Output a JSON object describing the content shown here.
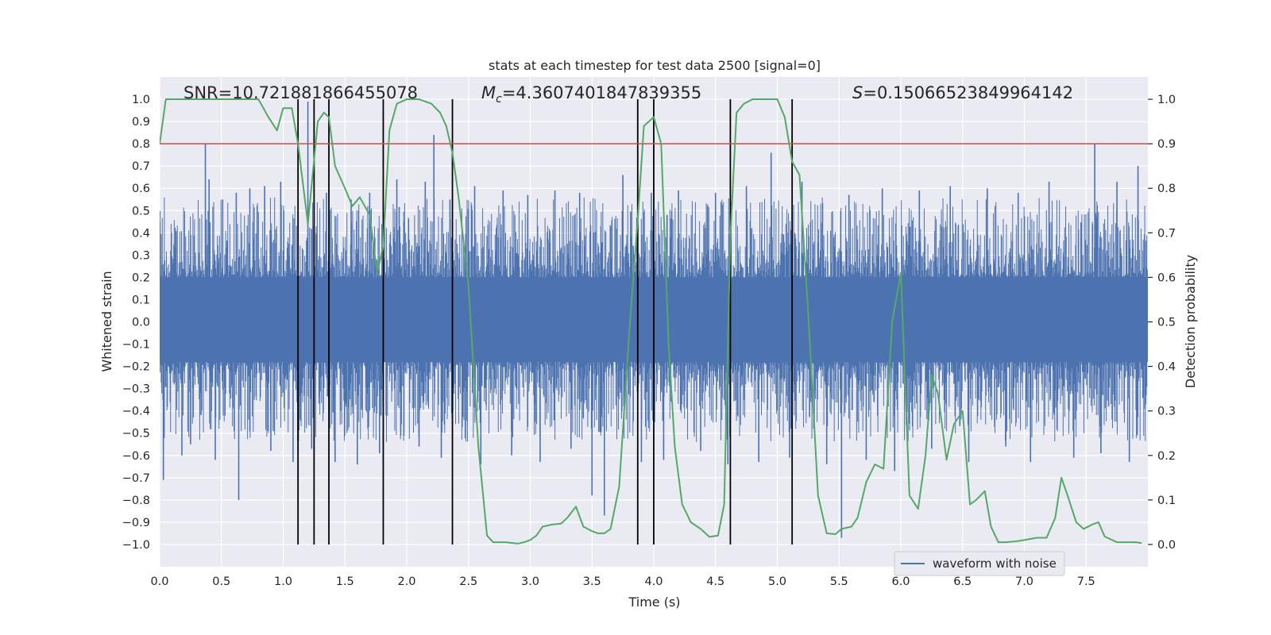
{
  "chart_data": {
    "type": "line",
    "title": "stats at each timestep for test data 2500 [signal=0]",
    "xlabel": "Time (s)",
    "ylabel_left": "Whitened strain",
    "ylabel_right": "Detection probability",
    "xlim": [
      0.0,
      8.0
    ],
    "ylim_left": [
      -1.1,
      1.1
    ],
    "ylim_right": [
      -0.05,
      1.05
    ],
    "x_ticks": [
      0.0,
      0.5,
      1.0,
      1.5,
      2.0,
      2.5,
      3.0,
      3.5,
      4.0,
      4.5,
      5.0,
      5.5,
      6.0,
      6.5,
      7.0,
      7.5
    ],
    "x_tick_labels": [
      "0.0",
      "0.5",
      "1.0",
      "1.5",
      "2.0",
      "2.5",
      "3.0",
      "3.5",
      "4.0",
      "4.5",
      "5.0",
      "5.5",
      "6.0",
      "6.5",
      "7.0",
      "7.5"
    ],
    "y_left_ticks": [
      1.0,
      0.9,
      0.8,
      0.7,
      0.6,
      0.5,
      0.4,
      0.3,
      0.2,
      0.1,
      0.0,
      -0.1,
      -0.2,
      -0.3,
      -0.4,
      -0.5,
      -0.6,
      -0.7,
      -0.8,
      -0.9,
      -1.0
    ],
    "y_left_tick_labels": [
      "1.0",
      "0.9",
      "0.8",
      "0.7",
      "0.6",
      "0.5",
      "0.4",
      "0.3",
      "0.2",
      "0.1",
      "0.0",
      "−0.1",
      "−0.2",
      "−0.3",
      "−0.4",
      "−0.5",
      "−0.6",
      "−0.7",
      "−0.8",
      "−0.9",
      "−1.0"
    ],
    "y_right_ticks": [
      1.0,
      0.9,
      0.8,
      0.7,
      0.6,
      0.5,
      0.4,
      0.3,
      0.2,
      0.1,
      0.0
    ],
    "y_right_tick_labels": [
      "1.0",
      "0.9",
      "0.8",
      "0.7",
      "0.6",
      "0.5",
      "0.4",
      "0.3",
      "0.2",
      "0.1",
      "0.0"
    ],
    "threshold": {
      "axis": "left",
      "value": 0.8,
      "color": "#c44e52"
    },
    "annotations": {
      "snr": "SNR=10.721881866455078",
      "mc_symbol": "M",
      "mc_subscript": "c",
      "mc_value": "=4.3607401847839355",
      "s_symbol": "S",
      "s_value": "=0.15066523849964142"
    },
    "event_lines": [
      1.12,
      1.25,
      1.37,
      1.81,
      2.37,
      3.87,
      4.0,
      4.62,
      5.12
    ],
    "event_line_color": "#000000",
    "waveform": {
      "name": "waveform with noise",
      "color": "#4c72b0",
      "band_low": -0.18,
      "band_high": 0.2,
      "spikes": [
        [
          0.03,
          -0.71
        ],
        [
          0.18,
          -0.6
        ],
        [
          0.25,
          -0.55
        ],
        [
          0.37,
          0.8
        ],
        [
          0.4,
          0.64
        ],
        [
          0.45,
          -0.62
        ],
        [
          0.51,
          0.55
        ],
        [
          0.62,
          0.58
        ],
        [
          0.64,
          -0.8
        ],
        [
          0.73,
          0.6
        ],
        [
          0.85,
          0.61
        ],
        [
          0.9,
          -0.58
        ],
        [
          0.98,
          0.63
        ],
        [
          1.08,
          -0.63
        ],
        [
          1.2,
          0.99
        ],
        [
          1.23,
          -0.57
        ],
        [
          1.35,
          0.58
        ],
        [
          1.42,
          -0.63
        ],
        [
          1.55,
          0.55
        ],
        [
          1.6,
          -0.64
        ],
        [
          1.7,
          0.58
        ],
        [
          1.78,
          -0.59
        ],
        [
          1.92,
          0.64
        ],
        [
          2.1,
          -0.56
        ],
        [
          2.15,
          0.63
        ],
        [
          2.22,
          0.84
        ],
        [
          2.28,
          -0.61
        ],
        [
          2.35,
          0.55
        ],
        [
          2.55,
          0.61
        ],
        [
          2.6,
          -0.64
        ],
        [
          2.78,
          0.59
        ],
        [
          2.85,
          -0.6
        ],
        [
          2.98,
          0.57
        ],
        [
          3.08,
          -0.63
        ],
        [
          3.2,
          0.59
        ],
        [
          3.33,
          -0.57
        ],
        [
          3.4,
          0.58
        ],
        [
          3.5,
          -0.78
        ],
        [
          3.6,
          -0.87
        ],
        [
          3.75,
          0.66
        ],
        [
          3.9,
          -0.63
        ],
        [
          3.98,
          0.58
        ],
        [
          4.08,
          -0.62
        ],
        [
          4.2,
          0.59
        ],
        [
          4.38,
          -0.58
        ],
        [
          4.5,
          0.58
        ],
        [
          4.6,
          -0.64
        ],
        [
          4.75,
          0.61
        ],
        [
          4.85,
          -0.63
        ],
        [
          4.95,
          0.76
        ],
        [
          5.1,
          -0.61
        ],
        [
          5.2,
          0.63
        ],
        [
          5.4,
          -0.64
        ],
        [
          5.52,
          -0.97
        ],
        [
          5.58,
          0.57
        ],
        [
          5.72,
          -0.62
        ],
        [
          5.85,
          0.6
        ],
        [
          5.95,
          -0.67
        ],
        [
          6.15,
          0.59
        ],
        [
          6.25,
          -0.57
        ],
        [
          6.4,
          0.61
        ],
        [
          6.55,
          -0.63
        ],
        [
          6.7,
          0.6
        ],
        [
          6.85,
          -0.56
        ],
        [
          6.95,
          0.58
        ],
        [
          7.05,
          -0.63
        ],
        [
          7.2,
          0.63
        ],
        [
          7.4,
          -0.61
        ],
        [
          7.57,
          0.8
        ],
        [
          7.62,
          -0.59
        ],
        [
          7.75,
          0.63
        ],
        [
          7.85,
          -0.63
        ],
        [
          7.92,
          0.7
        ]
      ]
    },
    "detection": {
      "name": "detection probability",
      "color": "#55a868",
      "x": [
        0.0,
        0.05,
        0.1,
        0.2,
        0.4,
        0.6,
        0.8,
        0.88,
        0.95,
        1.0,
        1.07,
        1.12,
        1.2,
        1.28,
        1.33,
        1.37,
        1.42,
        1.5,
        1.56,
        1.62,
        1.7,
        1.76,
        1.81,
        1.86,
        1.92,
        2.0,
        2.1,
        2.2,
        2.27,
        2.32,
        2.37,
        2.42,
        2.5,
        2.58,
        2.65,
        2.7,
        2.8,
        2.9,
        2.95,
        3.0,
        3.05,
        3.1,
        3.18,
        3.25,
        3.3,
        3.37,
        3.43,
        3.5,
        3.55,
        3.6,
        3.65,
        3.72,
        3.8,
        3.87,
        3.92,
        4.0,
        4.06,
        4.12,
        4.17,
        4.23,
        4.3,
        4.38,
        4.45,
        4.52,
        4.57,
        4.62,
        4.67,
        4.73,
        4.8,
        4.9,
        5.0,
        5.06,
        5.12,
        5.18,
        5.25,
        5.33,
        5.4,
        5.47,
        5.52,
        5.6,
        5.65,
        5.72,
        5.79,
        5.86,
        5.93,
        6.0,
        6.07,
        6.14,
        6.2,
        6.25,
        6.3,
        6.37,
        6.43,
        6.5,
        6.56,
        6.61,
        6.68,
        6.73,
        6.79,
        6.85,
        6.93,
        7.0,
        7.1,
        7.18,
        7.25,
        7.3,
        7.35,
        7.42,
        7.48,
        7.55,
        7.6,
        7.65,
        7.75,
        7.9,
        7.95
      ],
      "y": [
        0.9,
        1.0,
        1.0,
        1.0,
        1.0,
        1.0,
        1.0,
        0.96,
        0.93,
        0.98,
        0.98,
        0.9,
        0.72,
        0.95,
        0.97,
        0.96,
        0.85,
        0.8,
        0.76,
        0.78,
        0.74,
        0.61,
        0.67,
        0.93,
        0.99,
        1.0,
        1.0,
        0.99,
        0.97,
        0.94,
        0.88,
        0.78,
        0.58,
        0.22,
        0.02,
        0.005,
        0.005,
        0.002,
        0.005,
        0.01,
        0.02,
        0.04,
        0.045,
        0.047,
        0.06,
        0.085,
        0.04,
        0.03,
        0.025,
        0.025,
        0.035,
        0.13,
        0.47,
        0.73,
        0.94,
        0.96,
        0.9,
        0.45,
        0.22,
        0.09,
        0.05,
        0.035,
        0.017,
        0.02,
        0.09,
        0.69,
        0.97,
        0.99,
        1.0,
        1.0,
        1.0,
        0.96,
        0.86,
        0.83,
        0.52,
        0.11,
        0.025,
        0.023,
        0.035,
        0.04,
        0.06,
        0.14,
        0.18,
        0.17,
        0.5,
        0.61,
        0.11,
        0.08,
        0.2,
        0.38,
        0.34,
        0.19,
        0.27,
        0.3,
        0.09,
        0.1,
        0.12,
        0.04,
        0.005,
        0.005,
        0.007,
        0.01,
        0.015,
        0.015,
        0.06,
        0.15,
        0.11,
        0.05,
        0.035,
        0.045,
        0.05,
        0.018,
        0.005,
        0.005,
        0.003
      ]
    },
    "legend": {
      "location": "lower-right",
      "entries": [
        "waveform with noise"
      ]
    }
  }
}
